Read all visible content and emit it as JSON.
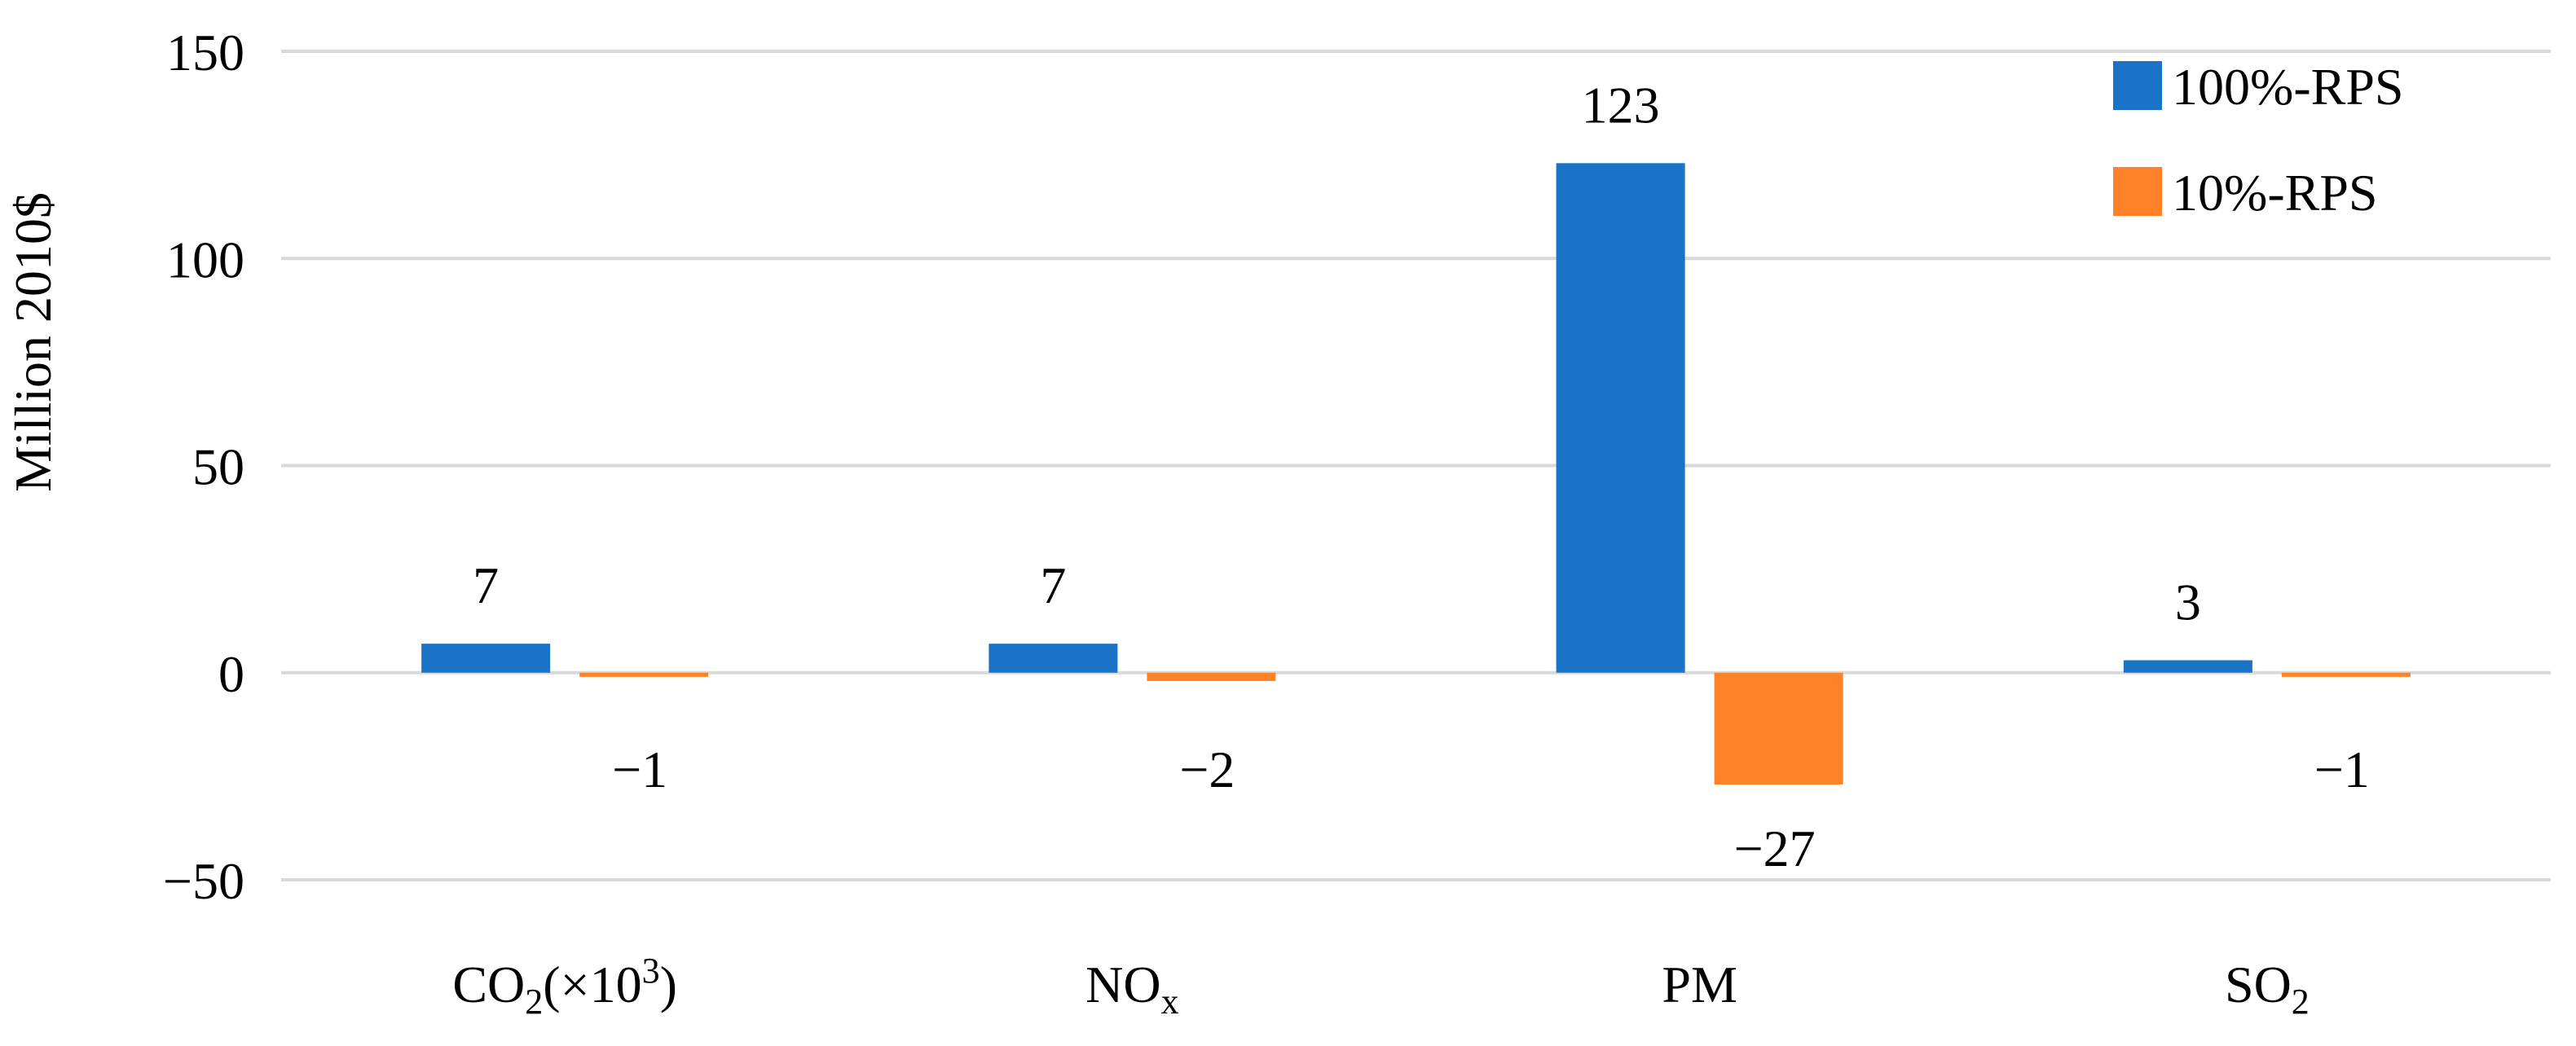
{
  "chart_data": {
    "type": "bar",
    "title": "",
    "xlabel": "",
    "ylabel": "Million 2010$",
    "ylim": [
      -50,
      150
    ],
    "yticks": [
      150,
      100,
      50,
      0,
      -50
    ],
    "ytick_labels": [
      "150",
      "100",
      "50",
      "0",
      "−50"
    ],
    "grid": true,
    "legend_position": "top-right",
    "categories": [
      {
        "base": "CO",
        "sub": "2",
        "suffix": "(×10",
        "sup": "3",
        "end": ")"
      },
      {
        "base": "NO",
        "sub": "x",
        "suffix": "",
        "sup": "",
        "end": ""
      },
      {
        "base": "PM",
        "sub": "",
        "suffix": "",
        "sup": "",
        "end": ""
      },
      {
        "base": "SO",
        "sub": "2",
        "suffix": "",
        "sup": "",
        "end": ""
      }
    ],
    "series": [
      {
        "name": "100%-RPS",
        "color": "#1b73c8",
        "values": [
          7,
          7,
          123,
          3
        ],
        "labels": [
          "7",
          "7",
          "123",
          "3"
        ]
      },
      {
        "name": "10%-RPS",
        "color": "#ff8229",
        "values": [
          -1,
          -2,
          -27,
          -1
        ],
        "labels": [
          "−1",
          "−2",
          "−27",
          "−1"
        ]
      }
    ]
  }
}
